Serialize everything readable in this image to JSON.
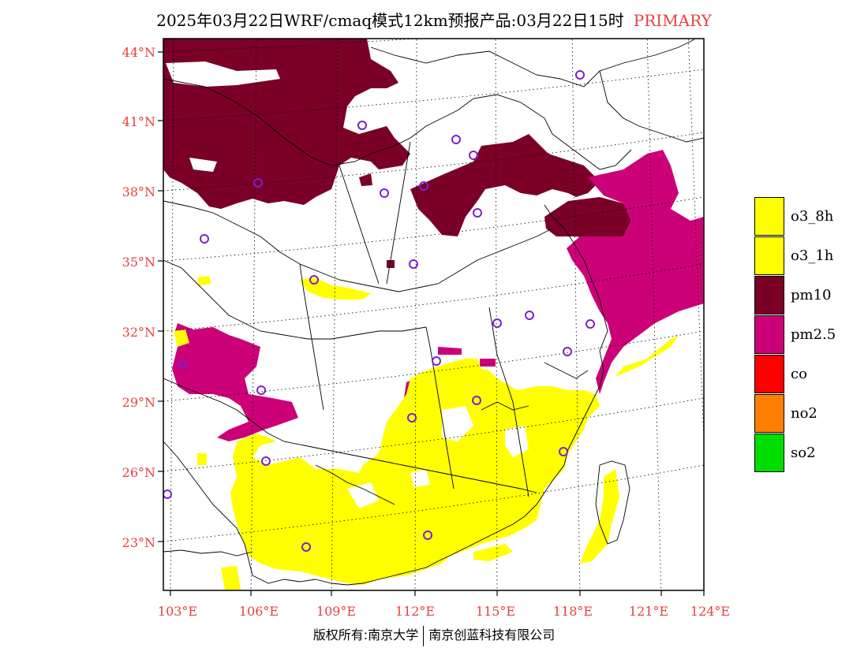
{
  "title": {
    "main": "2025年03月22日WRF/cmaq模式12km预报产品:03月22日15时",
    "tag": "PRIMARY",
    "tag_color": "#e8403e"
  },
  "axes": {
    "lat_labels": [
      "44°N",
      "41°N",
      "38°N",
      "35°N",
      "32°N",
      "29°N",
      "26°N",
      "23°N"
    ],
    "lon_labels": [
      "103°E",
      "106°E",
      "109°E",
      "112°E",
      "115°E",
      "118°E",
      "121°E",
      "124°E"
    ],
    "label_color": "#e8403e"
  },
  "legend": {
    "items": [
      {
        "label": "o3_8h",
        "color": "#ffff00"
      },
      {
        "label": "o3_1h",
        "color": "#ffff00"
      },
      {
        "label": "pm10",
        "color": "#7a0028"
      },
      {
        "label": "pm2.5",
        "color": "#cc0077"
      },
      {
        "label": "co",
        "color": "#ff0000"
      },
      {
        "label": "no2",
        "color": "#ff8000"
      },
      {
        "label": "so2",
        "color": "#00dd00"
      }
    ]
  },
  "footer": {
    "left": "版权所有:南京大学",
    "right": "南京创蓝科技有限公司"
  },
  "colors": {
    "pm10": "#7a0028",
    "pm25": "#cc0077",
    "o3": "#ffff00",
    "station": "#7a22cc"
  }
}
